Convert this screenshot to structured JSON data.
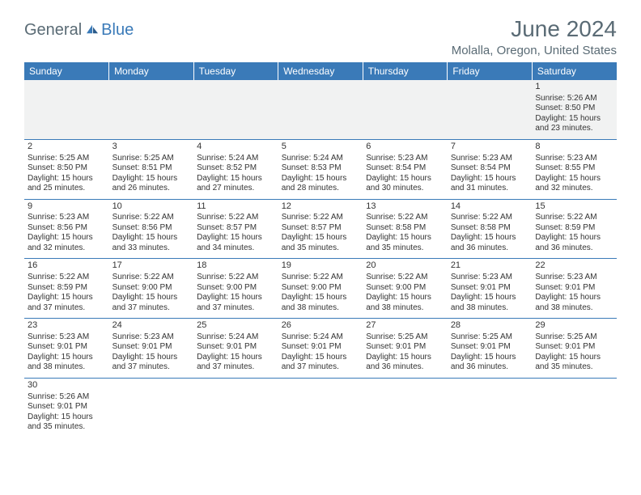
{
  "logo": {
    "general": "General",
    "blue": "Blue"
  },
  "title": "June 2024",
  "location": "Molalla, Oregon, United States",
  "colors": {
    "header_bg": "#3a7ab8",
    "header_text": "#ffffff",
    "text": "#333333",
    "muted": "#5a6b75",
    "empty_bg": "#f1f2f2"
  },
  "weekdays": [
    "Sunday",
    "Monday",
    "Tuesday",
    "Wednesday",
    "Thursday",
    "Friday",
    "Saturday"
  ],
  "weeks": [
    [
      null,
      null,
      null,
      null,
      null,
      null,
      {
        "d": "1",
        "sr": "Sunrise: 5:26 AM",
        "ss": "Sunset: 8:50 PM",
        "dl1": "Daylight: 15 hours",
        "dl2": "and 23 minutes."
      }
    ],
    [
      {
        "d": "2",
        "sr": "Sunrise: 5:25 AM",
        "ss": "Sunset: 8:50 PM",
        "dl1": "Daylight: 15 hours",
        "dl2": "and 25 minutes."
      },
      {
        "d": "3",
        "sr": "Sunrise: 5:25 AM",
        "ss": "Sunset: 8:51 PM",
        "dl1": "Daylight: 15 hours",
        "dl2": "and 26 minutes."
      },
      {
        "d": "4",
        "sr": "Sunrise: 5:24 AM",
        "ss": "Sunset: 8:52 PM",
        "dl1": "Daylight: 15 hours",
        "dl2": "and 27 minutes."
      },
      {
        "d": "5",
        "sr": "Sunrise: 5:24 AM",
        "ss": "Sunset: 8:53 PM",
        "dl1": "Daylight: 15 hours",
        "dl2": "and 28 minutes."
      },
      {
        "d": "6",
        "sr": "Sunrise: 5:23 AM",
        "ss": "Sunset: 8:54 PM",
        "dl1": "Daylight: 15 hours",
        "dl2": "and 30 minutes."
      },
      {
        "d": "7",
        "sr": "Sunrise: 5:23 AM",
        "ss": "Sunset: 8:54 PM",
        "dl1": "Daylight: 15 hours",
        "dl2": "and 31 minutes."
      },
      {
        "d": "8",
        "sr": "Sunrise: 5:23 AM",
        "ss": "Sunset: 8:55 PM",
        "dl1": "Daylight: 15 hours",
        "dl2": "and 32 minutes."
      }
    ],
    [
      {
        "d": "9",
        "sr": "Sunrise: 5:23 AM",
        "ss": "Sunset: 8:56 PM",
        "dl1": "Daylight: 15 hours",
        "dl2": "and 32 minutes."
      },
      {
        "d": "10",
        "sr": "Sunrise: 5:22 AM",
        "ss": "Sunset: 8:56 PM",
        "dl1": "Daylight: 15 hours",
        "dl2": "and 33 minutes."
      },
      {
        "d": "11",
        "sr": "Sunrise: 5:22 AM",
        "ss": "Sunset: 8:57 PM",
        "dl1": "Daylight: 15 hours",
        "dl2": "and 34 minutes."
      },
      {
        "d": "12",
        "sr": "Sunrise: 5:22 AM",
        "ss": "Sunset: 8:57 PM",
        "dl1": "Daylight: 15 hours",
        "dl2": "and 35 minutes."
      },
      {
        "d": "13",
        "sr": "Sunrise: 5:22 AM",
        "ss": "Sunset: 8:58 PM",
        "dl1": "Daylight: 15 hours",
        "dl2": "and 35 minutes."
      },
      {
        "d": "14",
        "sr": "Sunrise: 5:22 AM",
        "ss": "Sunset: 8:58 PM",
        "dl1": "Daylight: 15 hours",
        "dl2": "and 36 minutes."
      },
      {
        "d": "15",
        "sr": "Sunrise: 5:22 AM",
        "ss": "Sunset: 8:59 PM",
        "dl1": "Daylight: 15 hours",
        "dl2": "and 36 minutes."
      }
    ],
    [
      {
        "d": "16",
        "sr": "Sunrise: 5:22 AM",
        "ss": "Sunset: 8:59 PM",
        "dl1": "Daylight: 15 hours",
        "dl2": "and 37 minutes."
      },
      {
        "d": "17",
        "sr": "Sunrise: 5:22 AM",
        "ss": "Sunset: 9:00 PM",
        "dl1": "Daylight: 15 hours",
        "dl2": "and 37 minutes."
      },
      {
        "d": "18",
        "sr": "Sunrise: 5:22 AM",
        "ss": "Sunset: 9:00 PM",
        "dl1": "Daylight: 15 hours",
        "dl2": "and 37 minutes."
      },
      {
        "d": "19",
        "sr": "Sunrise: 5:22 AM",
        "ss": "Sunset: 9:00 PM",
        "dl1": "Daylight: 15 hours",
        "dl2": "and 38 minutes."
      },
      {
        "d": "20",
        "sr": "Sunrise: 5:22 AM",
        "ss": "Sunset: 9:00 PM",
        "dl1": "Daylight: 15 hours",
        "dl2": "and 38 minutes."
      },
      {
        "d": "21",
        "sr": "Sunrise: 5:23 AM",
        "ss": "Sunset: 9:01 PM",
        "dl1": "Daylight: 15 hours",
        "dl2": "and 38 minutes."
      },
      {
        "d": "22",
        "sr": "Sunrise: 5:23 AM",
        "ss": "Sunset: 9:01 PM",
        "dl1": "Daylight: 15 hours",
        "dl2": "and 38 minutes."
      }
    ],
    [
      {
        "d": "23",
        "sr": "Sunrise: 5:23 AM",
        "ss": "Sunset: 9:01 PM",
        "dl1": "Daylight: 15 hours",
        "dl2": "and 38 minutes."
      },
      {
        "d": "24",
        "sr": "Sunrise: 5:23 AM",
        "ss": "Sunset: 9:01 PM",
        "dl1": "Daylight: 15 hours",
        "dl2": "and 37 minutes."
      },
      {
        "d": "25",
        "sr": "Sunrise: 5:24 AM",
        "ss": "Sunset: 9:01 PM",
        "dl1": "Daylight: 15 hours",
        "dl2": "and 37 minutes."
      },
      {
        "d": "26",
        "sr": "Sunrise: 5:24 AM",
        "ss": "Sunset: 9:01 PM",
        "dl1": "Daylight: 15 hours",
        "dl2": "and 37 minutes."
      },
      {
        "d": "27",
        "sr": "Sunrise: 5:25 AM",
        "ss": "Sunset: 9:01 PM",
        "dl1": "Daylight: 15 hours",
        "dl2": "and 36 minutes."
      },
      {
        "d": "28",
        "sr": "Sunrise: 5:25 AM",
        "ss": "Sunset: 9:01 PM",
        "dl1": "Daylight: 15 hours",
        "dl2": "and 36 minutes."
      },
      {
        "d": "29",
        "sr": "Sunrise: 5:25 AM",
        "ss": "Sunset: 9:01 PM",
        "dl1": "Daylight: 15 hours",
        "dl2": "and 35 minutes."
      }
    ],
    [
      {
        "d": "30",
        "sr": "Sunrise: 5:26 AM",
        "ss": "Sunset: 9:01 PM",
        "dl1": "Daylight: 15 hours",
        "dl2": "and 35 minutes."
      },
      null,
      null,
      null,
      null,
      null,
      null
    ]
  ]
}
